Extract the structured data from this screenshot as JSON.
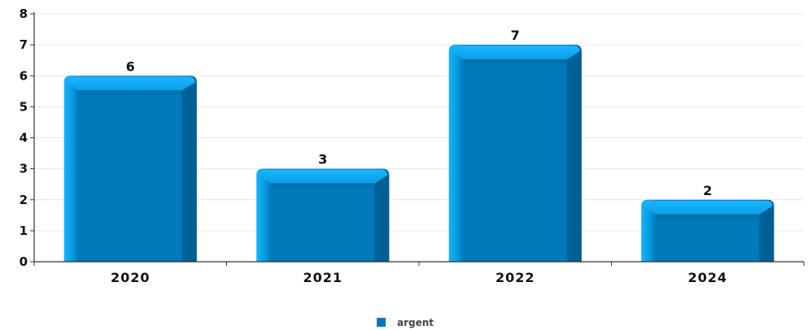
{
  "chart_data": {
    "type": "bar",
    "categories": [
      "2020",
      "2021",
      "2022",
      "2024"
    ],
    "series": [
      {
        "name": "argent",
        "values": [
          6,
          3,
          7,
          2
        ],
        "color": "#0079bb"
      }
    ],
    "yticks": [
      "0",
      "1",
      "2",
      "3",
      "4",
      "5",
      "6",
      "7",
      "8"
    ],
    "ylim": [
      0,
      8
    ],
    "grid": true,
    "legend": "bottom-center",
    "title": "",
    "xlabel": "",
    "ylabel": ""
  }
}
